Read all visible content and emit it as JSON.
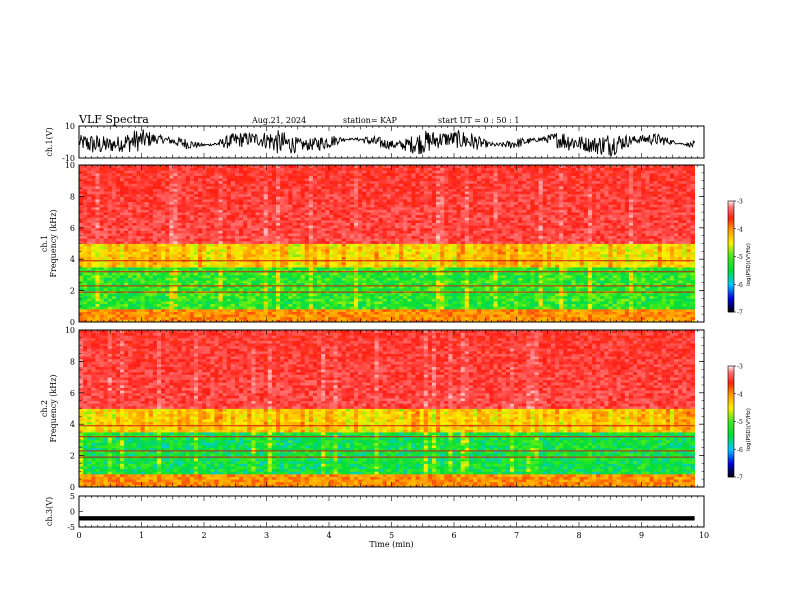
{
  "header": {
    "title": "VLF Spectra",
    "date": "Aug.21, 2024",
    "station": "station= KAP",
    "start": "start UT =  0 : 50 : 1"
  },
  "chart_data": [
    {
      "type": "line",
      "panel": "ch1-waveform",
      "ylabel": "ch.1(V)",
      "ylim": [
        -10,
        10
      ],
      "yticks": [
        "10",
        "-10"
      ],
      "xlim": [
        0,
        10
      ],
      "series": [
        {
          "color": "#000000",
          "description_range": [
            -6,
            6
          ]
        }
      ]
    },
    {
      "type": "heatmap",
      "panel": "ch1-spectrogram",
      "ylabel": "ch.1\nFrequency (kHz)",
      "ylim": [
        0,
        10
      ],
      "yticks": [
        "0",
        "2",
        "4",
        "6",
        "8",
        "10"
      ],
      "xlim": [
        0,
        10
      ],
      "data_end_min": 9.85,
      "bands_khz": [
        {
          "from": 0,
          "to": 0.8,
          "level": -4.0
        },
        {
          "from": 0.8,
          "to": 3.5,
          "level": -5.2
        },
        {
          "from": 3.5,
          "to": 5.0,
          "level": -4.3
        },
        {
          "from": 5.0,
          "to": 10,
          "level": -3.4
        }
      ],
      "colorbar": {
        "label": "log(PSD)(V²/Hz)",
        "min": -7,
        "max": -3,
        "ticks": [
          "-3",
          "-4",
          "-5",
          "-6",
          "-7"
        ]
      }
    },
    {
      "type": "heatmap",
      "panel": "ch2-spectrogram",
      "ylabel": "ch.2\nFrequency (kHz)",
      "ylim": [
        0,
        10
      ],
      "yticks": [
        "0",
        "2",
        "4",
        "6",
        "8",
        "10"
      ],
      "xlim": [
        0,
        10
      ],
      "data_end_min": 9.85,
      "bands_khz": [
        {
          "from": 0,
          "to": 0.8,
          "level": -4.0
        },
        {
          "from": 0.8,
          "to": 3.5,
          "level": -5.4
        },
        {
          "from": 3.5,
          "to": 5.0,
          "level": -4.3
        },
        {
          "from": 5.0,
          "to": 10,
          "level": -3.4
        }
      ],
      "colorbar": {
        "label": "log(PSD)(V²/Hz)",
        "min": -7,
        "max": -3,
        "ticks": [
          "-3",
          "-4",
          "-5",
          "-6",
          "-7"
        ]
      }
    },
    {
      "type": "line",
      "panel": "ch3-waveform",
      "ylabel": "ch.3(V)",
      "ylim": [
        -5,
        5
      ],
      "yticks": [
        "5",
        "0",
        "-5"
      ],
      "xlim": [
        0,
        10
      ],
      "xlabel": "Time (min)",
      "xticks": [
        "0",
        "1",
        "2",
        "3",
        "4",
        "5",
        "6",
        "7",
        "8",
        "9",
        "10"
      ],
      "series": [
        {
          "color": "#000000",
          "level": -2.2,
          "band": 0.7
        }
      ]
    }
  ],
  "colors": {
    "red": "#ff2a1a",
    "yellow": "#ffee00",
    "green": "#22dd22",
    "cyan": "#00cccc",
    "blue": "#0000ee",
    "black": "#000000"
  }
}
